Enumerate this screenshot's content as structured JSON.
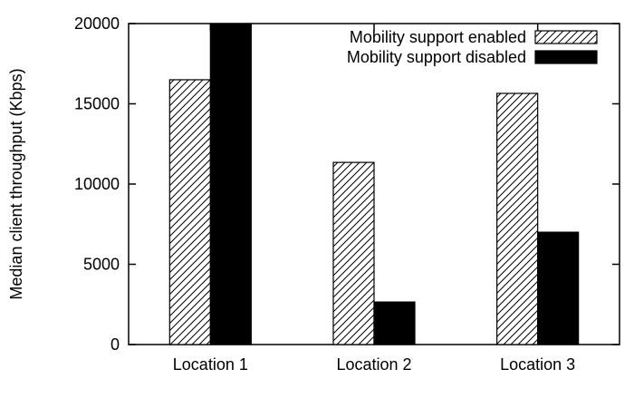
{
  "chart_data": {
    "type": "bar",
    "title": "",
    "xlabel": "",
    "ylabel": "Median client throughput (Kbps)",
    "categories": [
      "Location 1",
      "Location 2",
      "Location 3"
    ],
    "series": [
      {
        "name": "Mobility support enabled",
        "values": [
          16500,
          11350,
          15650
        ],
        "fill": "hatch"
      },
      {
        "name": "Mobility support disabled",
        "values": [
          20000,
          2650,
          7000
        ],
        "fill": "#000000"
      }
    ],
    "ylim": [
      0,
      20000
    ],
    "yticks": [
      0,
      5000,
      10000,
      15000,
      20000
    ],
    "grid": false,
    "legend_position": "top-right"
  }
}
